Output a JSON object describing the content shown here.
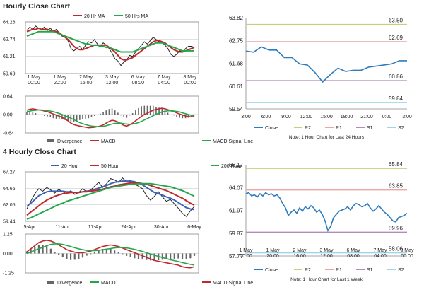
{
  "hourly": {
    "title": "Hourly Close Chart",
    "price_legend": [
      "20 Hr MA",
      "50 Hrs MA"
    ],
    "macd_legend": [
      "Divergence",
      "MACD",
      "MACD Signal Line"
    ],
    "right_legend": [
      "Close",
      "R2",
      "R1",
      "S1",
      "S2"
    ],
    "note": "Note: 1 Hour Chart for Last 24 Hours"
  },
  "four_hourly": {
    "title": "4 Hourly Close Chart",
    "price_legend": [
      "20 Hour",
      "50 Hour",
      "200 Hour"
    ],
    "macd_legend": [
      "Divergence",
      "MACD",
      "MACD Signal Line"
    ],
    "right_legend": [
      "Close",
      "R2",
      "R1",
      "S1",
      "S2"
    ],
    "note": "Note: 1 Hour Chart for Last 1 Week"
  },
  "colors": {
    "price": "#222222",
    "ma_fast": "#c0282d",
    "ma_slow": "#22a84a",
    "ma_long": "#3a63b8",
    "close": "#2f7cbc",
    "r2": "#c8cf7a",
    "r1": "#e8a8a8",
    "s1": "#b48ab8",
    "s2": "#9fd6ea",
    "divergence": "#666666"
  },
  "chart_data": [
    {
      "id": "hourly_price",
      "type": "line",
      "ylim": [
        59.69,
        64.26
      ],
      "yticks": [
        "64.26",
        "62.74",
        "61.21",
        "59.69"
      ],
      "xticks": [
        "1 May\n00:00",
        "1 May\n20:00",
        "2 May\n16:00",
        "3 May\n12:00",
        "6 May\n08:00",
        "7 May\n04:00",
        "8 May\n00:00"
      ],
      "series": [
        {
          "name": "Price",
          "values": [
            63.5,
            63.8,
            63.6,
            63.9,
            63.7,
            63.6,
            63.8,
            63.5,
            63.7,
            63.4,
            63.6,
            63.3,
            63.0,
            62.9,
            62.6,
            61.9,
            61.7,
            61.9,
            62.1,
            61.8,
            62.2,
            62.5,
            62.4,
            62.7,
            62.3,
            62.1,
            62.4,
            62.2,
            61.9,
            61.5,
            61.0,
            60.8,
            60.4,
            60.7,
            60.9,
            61.3,
            61.2,
            61.6,
            61.9,
            62.2,
            62.5,
            62.3,
            62.6,
            62.9,
            62.7,
            62.5,
            62.4,
            62.2,
            61.9,
            61.4,
            61.2,
            61.4,
            61.7,
            61.6,
            61.9,
            62.1,
            62.1,
            62.0
          ]
        },
        {
          "name": "20 Hr MA",
          "values": [
            63.4,
            63.5,
            63.6,
            63.6,
            63.7,
            63.6,
            63.6,
            63.6,
            63.5,
            63.5,
            63.4,
            63.3,
            63.1,
            62.9,
            62.7,
            62.4,
            62.1,
            61.9,
            61.8,
            61.8,
            61.9,
            62.0,
            62.1,
            62.2,
            62.2,
            62.2,
            62.2,
            62.2,
            62.0,
            61.8,
            61.6,
            61.3,
            61.0,
            60.9,
            60.9,
            61.0,
            61.1,
            61.3,
            61.5,
            61.7,
            61.9,
            62.1,
            62.3,
            62.5,
            62.6,
            62.6,
            62.5,
            62.4,
            62.2,
            62.0,
            61.8,
            61.7,
            61.6,
            61.6,
            61.7,
            61.8,
            61.9,
            62.0
          ]
        },
        {
          "name": "50 Hrs MA",
          "values": [
            63.0,
            63.1,
            63.2,
            63.3,
            63.4,
            63.4,
            63.4,
            63.4,
            63.4,
            63.4,
            63.3,
            63.2,
            63.1,
            63.0,
            62.9,
            62.8,
            62.7,
            62.6,
            62.5,
            62.4,
            62.3,
            62.3,
            62.2,
            62.2,
            62.2,
            62.1,
            62.1,
            62.0,
            62.0,
            61.9,
            61.8,
            61.7,
            61.6,
            61.6,
            61.6,
            61.6,
            61.6,
            61.7,
            61.8,
            61.9,
            62.0,
            62.1,
            62.2,
            62.3,
            62.4,
            62.4,
            62.4,
            62.3,
            62.2,
            62.1,
            62.0,
            61.9,
            61.8,
            61.7,
            61.7,
            61.7,
            61.7,
            61.7
          ]
        }
      ]
    },
    {
      "id": "hourly_macd",
      "type": "line",
      "ylim": [
        -0.64,
        0.64
      ],
      "yticks": [
        "0.64",
        "0.00",
        "-0.64"
      ],
      "series": [
        {
          "name": "MACD",
          "values": [
            0.15,
            0.18,
            0.2,
            0.18,
            0.16,
            0.15,
            0.12,
            0.1,
            0.06,
            0.02,
            -0.02,
            -0.06,
            -0.1,
            -0.16,
            -0.22,
            -0.3,
            -0.35,
            -0.38,
            -0.4,
            -0.42,
            -0.44,
            -0.46,
            -0.45,
            -0.44,
            -0.42,
            -0.4,
            -0.36,
            -0.3,
            -0.24,
            -0.2,
            -0.22,
            -0.26,
            -0.32,
            -0.38,
            -0.4,
            -0.36,
            -0.3,
            -0.22,
            -0.14,
            -0.06,
            0.0,
            0.05,
            0.1,
            0.15,
            0.18,
            0.2,
            0.22,
            0.2,
            0.17,
            0.13,
            0.1,
            0.06,
            0.02,
            -0.02,
            -0.05,
            -0.07,
            -0.08,
            -0.06
          ]
        },
        {
          "name": "MACD Signal Line",
          "values": [
            0.1,
            0.12,
            0.14,
            0.15,
            0.16,
            0.16,
            0.15,
            0.14,
            0.12,
            0.1,
            0.07,
            0.04,
            0.0,
            -0.04,
            -0.08,
            -0.13,
            -0.18,
            -0.23,
            -0.28,
            -0.32,
            -0.35,
            -0.38,
            -0.4,
            -0.41,
            -0.42,
            -0.42,
            -0.41,
            -0.39,
            -0.36,
            -0.33,
            -0.31,
            -0.3,
            -0.3,
            -0.32,
            -0.33,
            -0.34,
            -0.33,
            -0.31,
            -0.28,
            -0.24,
            -0.19,
            -0.14,
            -0.09,
            -0.04,
            0.01,
            0.05,
            0.09,
            0.11,
            0.13,
            0.13,
            0.12,
            0.11,
            0.09,
            0.06,
            0.03,
            0.0,
            -0.03,
            -0.04
          ]
        }
      ]
    },
    {
      "id": "hourly_right",
      "type": "line",
      "ylim": [
        59.54,
        63.82
      ],
      "yticks": [
        "63.82",
        "62.75",
        "61.68",
        "60.61",
        "59.54"
      ],
      "xticks": [
        "3:00",
        "6:00",
        "9:00",
        "12:00",
        "15:00",
        "18:00",
        "21:00",
        "0:00",
        "3:00"
      ],
      "levels": [
        {
          "name": "R2",
          "value": 63.5
        },
        {
          "name": "R1",
          "value": 62.69
        },
        {
          "name": "S1",
          "value": 60.86
        },
        {
          "name": "S2",
          "value": 59.84
        }
      ],
      "level_labels": [
        "63.50",
        "62.69",
        "60.86",
        "59.84"
      ],
      "series": [
        {
          "name": "Close",
          "values": [
            62.25,
            62.2,
            62.45,
            62.3,
            62.3,
            61.95,
            61.95,
            61.65,
            61.6,
            61.25,
            60.8,
            61.15,
            61.45,
            61.3,
            61.35,
            61.35,
            61.5,
            61.55,
            61.6,
            61.65,
            61.8,
            61.8
          ]
        }
      ]
    },
    {
      "id": "four_hourly_price",
      "type": "line",
      "ylim": [
        59.44,
        67.27
      ],
      "yticks": [
        "67.27",
        "64.66",
        "62.05",
        "59.44"
      ],
      "xticks": [
        "5-Apr",
        "11-Apr",
        "17-Apr",
        "24-Apr",
        "30-Apr",
        "6-May"
      ],
      "series": [
        {
          "name": "Price",
          "values": [
            61.4,
            62.6,
            63.8,
            64.6,
            64.2,
            64.8,
            64.4,
            63.9,
            64.5,
            64.1,
            63.8,
            64.3,
            63.7,
            64.0,
            64.6,
            64.1,
            64.4,
            65.0,
            65.6,
            64.8,
            65.4,
            66.2,
            66.0,
            65.6,
            66.3,
            65.7,
            65.9,
            65.3,
            65.0,
            64.6,
            63.5,
            62.8,
            63.4,
            64.1,
            63.3,
            62.6,
            62.9,
            62.2,
            61.5,
            60.7,
            60.2,
            61.1,
            61.8
          ]
        },
        {
          "name": "20 Hour",
          "values": [
            61.8,
            62.3,
            62.9,
            63.5,
            63.8,
            64.1,
            64.2,
            64.2,
            64.2,
            64.2,
            64.1,
            64.1,
            64.0,
            64.0,
            64.1,
            64.2,
            64.3,
            64.5,
            64.7,
            64.9,
            65.1,
            65.4,
            65.6,
            65.7,
            65.8,
            65.8,
            65.8,
            65.7,
            65.5,
            65.2,
            64.8,
            64.4,
            64.0,
            63.8,
            63.6,
            63.3,
            63.1,
            62.8,
            62.4,
            62.0,
            61.6,
            61.4,
            61.3
          ]
        },
        {
          "name": "50 Hour",
          "values": [
            60.4,
            60.9,
            61.4,
            61.9,
            62.4,
            62.8,
            63.1,
            63.4,
            63.6,
            63.8,
            63.9,
            64.0,
            64.0,
            64.0,
            64.1,
            64.1,
            64.2,
            64.3,
            64.4,
            64.5,
            64.7,
            64.9,
            65.0,
            65.2,
            65.3,
            65.4,
            65.5,
            65.5,
            65.5,
            65.4,
            65.3,
            65.1,
            64.9,
            64.7,
            64.5,
            64.3,
            64.0,
            63.7,
            63.4,
            63.1,
            62.7,
            62.3,
            62.0
          ]
        },
        {
          "name": "200 Hour",
          "values": [
            59.8,
            60.0,
            60.3,
            60.6,
            60.9,
            61.2,
            61.5,
            61.8,
            62.1,
            62.3,
            62.6,
            62.8,
            63.0,
            63.2,
            63.4,
            63.6,
            63.8,
            64.0,
            64.2,
            64.4,
            64.6,
            64.8,
            64.9,
            65.0,
            65.1,
            65.2,
            65.3,
            65.3,
            65.4,
            65.4,
            65.4,
            65.4,
            65.3,
            65.2,
            65.1,
            65.0,
            64.9,
            64.7,
            64.5,
            64.3,
            64.0,
            63.7,
            63.4
          ]
        }
      ]
    },
    {
      "id": "four_hourly_macd",
      "type": "line",
      "ylim": [
        -1.25,
        1.25
      ],
      "yticks": [
        "1.25",
        "0.00",
        "-1.25"
      ],
      "series": [
        {
          "name": "MACD",
          "values": [
            0.1,
            0.3,
            0.5,
            0.7,
            0.8,
            0.85,
            0.8,
            0.7,
            0.55,
            0.4,
            0.25,
            0.15,
            0.08,
            0.05,
            0.05,
            0.1,
            0.15,
            0.25,
            0.35,
            0.45,
            0.5,
            0.55,
            0.5,
            0.45,
            0.35,
            0.25,
            0.15,
            0.05,
            -0.05,
            -0.15,
            -0.25,
            -0.35,
            -0.45,
            -0.5,
            -0.55,
            -0.6,
            -0.65,
            -0.7,
            -0.75,
            -0.85,
            -0.9,
            -0.92,
            -0.85
          ]
        },
        {
          "name": "MACD Signal Line",
          "values": [
            0.0,
            0.1,
            0.2,
            0.3,
            0.4,
            0.5,
            0.58,
            0.62,
            0.62,
            0.58,
            0.52,
            0.45,
            0.37,
            0.3,
            0.24,
            0.2,
            0.18,
            0.18,
            0.2,
            0.24,
            0.28,
            0.32,
            0.36,
            0.38,
            0.38,
            0.36,
            0.32,
            0.27,
            0.2,
            0.13,
            0.05,
            -0.03,
            -0.11,
            -0.19,
            -0.26,
            -0.33,
            -0.4,
            -0.46,
            -0.52,
            -0.58,
            -0.64,
            -0.7,
            -0.74
          ]
        }
      ]
    },
    {
      "id": "four_hourly_right",
      "type": "line",
      "ylim": [
        57.77,
        66.17
      ],
      "yticks": [
        "66.17",
        "64.07",
        "61.97",
        "59.87",
        "57.77"
      ],
      "xticks": [
        "1 May\n00:00",
        "1 May\n20:00",
        "2 May\n16:00",
        "3 May\n12:00",
        "6 May\n08:00",
        "7 May\n04:00",
        "8 May\n00:00"
      ],
      "levels": [
        {
          "name": "R2",
          "value": 65.84
        },
        {
          "name": "R1",
          "value": 63.85
        },
        {
          "name": "S1",
          "value": 59.96
        },
        {
          "name": "S2",
          "value": 58.06
        }
      ],
      "level_labels": [
        "65.84",
        "63.85",
        "59.96",
        "58.06"
      ],
      "series": [
        {
          "name": "Close",
          "values": [
            63.5,
            63.6,
            63.3,
            63.4,
            63.2,
            63.5,
            63.3,
            63.6,
            63.4,
            63.5,
            63.3,
            63.4,
            63.1,
            62.6,
            62.2,
            61.5,
            61.8,
            62.0,
            61.7,
            62.2,
            61.9,
            62.3,
            62.1,
            62.4,
            62.2,
            61.8,
            62.0,
            61.6,
            61.0,
            60.1,
            60.5,
            61.3,
            61.6,
            61.9,
            62.0,
            62.1,
            62.3,
            62.0,
            62.4,
            62.6,
            62.5,
            62.3,
            62.4,
            62.6,
            62.2,
            61.9,
            62.1,
            62.4,
            62.1,
            61.8,
            61.6,
            61.3,
            61.0,
            60.9,
            61.3,
            61.4,
            61.5,
            61.7
          ]
        }
      ]
    }
  ]
}
